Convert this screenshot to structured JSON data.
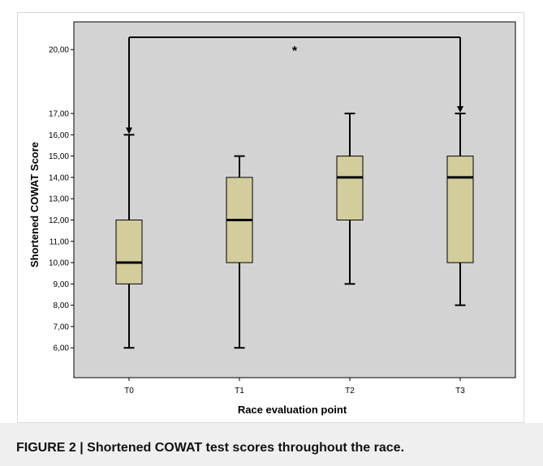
{
  "figure": {
    "caption": "FIGURE 2 | Shortened COWAT test scores throughout the race."
  },
  "colors": {
    "plot_background": "#d3d3d3",
    "box_fill": "#d3cd9b",
    "line": "#000000",
    "caption_background": "#efefef"
  },
  "chart_data": {
    "type": "boxplot",
    "xlabel": "Race evaluation point",
    "ylabel": "Shortened COWAT Score",
    "categories": [
      "T0",
      "T1",
      "T2",
      "T3"
    ],
    "boxes": [
      {
        "label": "T0",
        "min": 6,
        "q1": 9,
        "median": 10,
        "q3": 12,
        "max": 16
      },
      {
        "label": "T1",
        "min": 6,
        "q1": 10,
        "median": 12,
        "q3": 14,
        "max": 15
      },
      {
        "label": "T2",
        "min": 9,
        "q1": 12,
        "median": 14,
        "q3": 15,
        "max": 17
      },
      {
        "label": "T3",
        "min": 8,
        "q1": 10,
        "median": 14,
        "q3": 15,
        "max": 17
      }
    ],
    "yticks": [
      {
        "value": 6,
        "label": "6,00"
      },
      {
        "value": 7,
        "label": "7,00"
      },
      {
        "value": 8,
        "label": "8,00"
      },
      {
        "value": 9,
        "label": "9,00"
      },
      {
        "value": 10,
        "label": "10,00"
      },
      {
        "value": 11,
        "label": "11,00"
      },
      {
        "value": 12,
        "label": "12,00"
      },
      {
        "value": 13,
        "label": "13,00"
      },
      {
        "value": 14,
        "label": "14,00"
      },
      {
        "value": 15,
        "label": "15,00"
      },
      {
        "value": 16,
        "label": "16,00"
      },
      {
        "value": 17,
        "label": "17,00"
      },
      {
        "value": 20,
        "label": "20,00"
      }
    ],
    "ylim": [
      4.6,
      21.3
    ],
    "grid": false,
    "significance": {
      "from": "T0",
      "to": "T3",
      "from_value": 16,
      "to_value": 17,
      "label": "*"
    }
  }
}
